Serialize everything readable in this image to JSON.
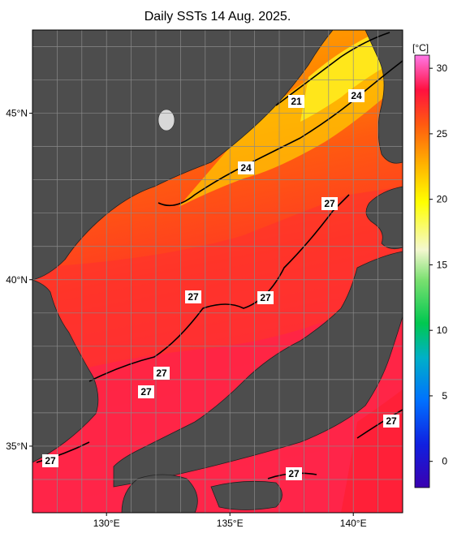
{
  "title": "Daily SSTs 14 Aug. 2025.",
  "map": {
    "lat_ticks": [
      {
        "label": "45°N",
        "lat": 45
      },
      {
        "label": "40°N",
        "lat": 40
      },
      {
        "label": "35°N",
        "lat": 35
      }
    ],
    "lon_ticks": [
      {
        "label": "130°E",
        "lon": 130
      },
      {
        "label": "135°E",
        "lon": 135
      },
      {
        "label": "140°E",
        "lon": 140
      }
    ],
    "extent": {
      "lon_min": 127,
      "lon_max": 142,
      "lat_min": 33,
      "lat_max": 47.5
    },
    "land_color": "#4d4d4d",
    "graticule_color": "#8a8a8a"
  },
  "colorbar": {
    "unit": "[°C]",
    "ticks": [
      "30",
      "25",
      "20",
      "15",
      "10",
      "5",
      "0"
    ],
    "range": [
      -2,
      31
    ],
    "colors": [
      "#3a00b0",
      "#0050ff",
      "#00b0c8",
      "#00c850",
      "#90e070",
      "#f8f8d0",
      "#ffff00",
      "#ffa000",
      "#ff5000",
      "#ff1040",
      "#ff70e0"
    ]
  },
  "isotherm_labels": [
    {
      "text": "21"
    },
    {
      "text": "24"
    },
    {
      "text": "24"
    },
    {
      "text": "27"
    },
    {
      "text": "27"
    },
    {
      "text": "27"
    },
    {
      "text": "27"
    },
    {
      "text": "27"
    },
    {
      "text": "27"
    },
    {
      "text": "27"
    },
    {
      "text": "27"
    }
  ]
}
